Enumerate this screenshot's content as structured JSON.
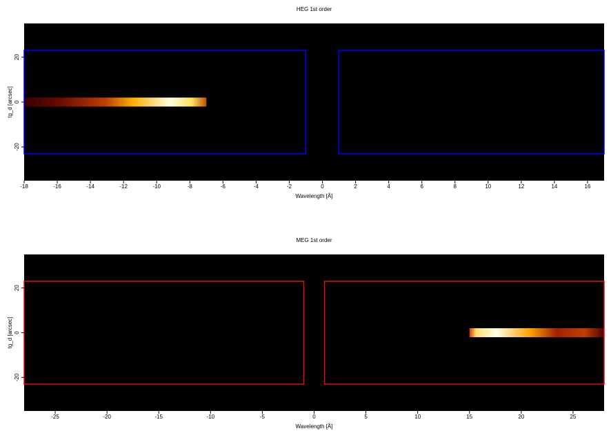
{
  "chart_data": [
    {
      "type": "image",
      "title": "HEG 1st order",
      "xlabel": "Wavelength [Å]",
      "ylabel": "tg_d [arcsec]",
      "xlim": [
        -18,
        17
      ],
      "ylim": [
        -35,
        35
      ],
      "xticks": [
        -18,
        -16,
        -14,
        -12,
        -10,
        -8,
        -6,
        -4,
        -2,
        0,
        2,
        4,
        6,
        8,
        10,
        12,
        14,
        16
      ],
      "yticks": [
        -20,
        0,
        20
      ],
      "region_color": "#0000ff",
      "regions": [
        {
          "x": [
            -18,
            -1
          ],
          "y": [
            -23,
            23
          ]
        },
        {
          "x": [
            1,
            17
          ],
          "y": [
            -23,
            23
          ]
        }
      ],
      "source_trace": {
        "x": [
          -18,
          -7
        ],
        "y": [
          -2,
          2
        ]
      }
    },
    {
      "type": "image",
      "title": "MEG 1st order",
      "xlabel": "Wavelength [Å]",
      "ylabel": "tg_d [arcsec]",
      "xlim": [
        -28,
        28
      ],
      "ylim": [
        -35,
        35
      ],
      "xticks": [
        -25,
        -20,
        -15,
        -10,
        -5,
        0,
        5,
        10,
        15,
        20,
        25
      ],
      "yticks": [
        -20,
        0,
        20
      ],
      "region_color": "#dd1111",
      "regions": [
        {
          "x": [
            -28,
            -1
          ],
          "y": [
            -23,
            23
          ]
        },
        {
          "x": [
            1,
            28
          ],
          "y": [
            -23,
            23
          ]
        }
      ],
      "source_trace": {
        "x": [
          15,
          28
        ],
        "y": [
          -2,
          2
        ]
      }
    }
  ]
}
